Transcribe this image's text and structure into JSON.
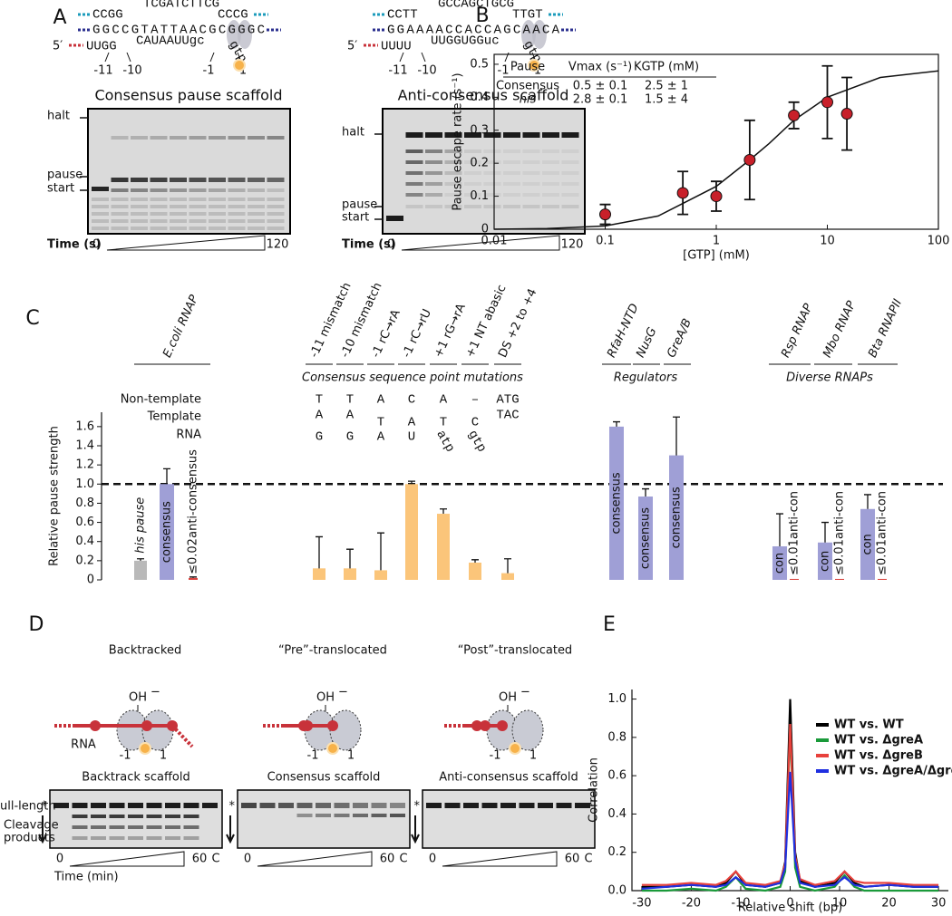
{
  "figure": {
    "panel_labels": {
      "a": "A",
      "b": "B",
      "c": "C",
      "d": "D",
      "e": "E"
    },
    "a_left": {
      "nontemplate": [
        "CCGG",
        "TCGATCTTCG",
        "CCCG"
      ],
      "template": "GGCCGTATTAACGCGGGC",
      "rna": [
        "5′",
        "UUGG",
        "CAUAAUUgc",
        "gtp"
      ],
      "positions": [
        "-11",
        "-10",
        "-1",
        "1"
      ],
      "title": "Consensus pause scaffold",
      "gel_labels": [
        "halt",
        "pause",
        "start"
      ],
      "time": [
        "Time (s)",
        "0",
        "120"
      ]
    },
    "a_right": {
      "nontemplate": [
        "CCTT",
        "GCCAGCTGCG",
        "TTGT"
      ],
      "template": "GGAAAACCACCAGCAACA",
      "rna": [
        "5′",
        "UUUU",
        "UUGGUGGuc",
        "gtp"
      ],
      "positions": [
        "-11",
        "-10",
        "-1",
        "1"
      ],
      "title": "Anti-consensus scaffold",
      "gel_labels": [
        "halt",
        "pause",
        "start"
      ],
      "time": [
        "Time (s)",
        "0",
        "120"
      ]
    },
    "d": {
      "states": [
        "Backtracked",
        "“Pre”-translocated",
        "“Post”-translocated"
      ],
      "oh": "OH",
      "oh_sup": "−",
      "rna": "RNA",
      "positions": [
        "-1",
        "1"
      ],
      "gels": [
        "Backtrack scaffold",
        "Consensus scaffold",
        "Anti-consensus scaffold"
      ],
      "gel_labels": [
        "ull-length",
        "*",
        "Cleavage",
        "products"
      ],
      "time": [
        "0",
        "60",
        "C",
        "Time (min)"
      ]
    }
  },
  "chart_data": [
    {
      "type": "scatter",
      "x_label": "[GTP] (mM)",
      "y_label": "Pause escape rate (s⁻¹)",
      "x": [
        0.1,
        0.5,
        1,
        2,
        5,
        10,
        15
      ],
      "values": [
        0.045,
        0.11,
        0.1,
        0.21,
        0.345,
        0.385,
        0.35
      ],
      "errors": [
        0.03,
        0.065,
        0.045,
        0.12,
        0.04,
        0.11,
        0.11
      ],
      "color": "#c8202a",
      "xlog": true,
      "xlim": [
        0.01,
        100
      ],
      "xticks": [
        0.01,
        0.1,
        1,
        10,
        100
      ],
      "ylim": [
        0,
        0.53
      ],
      "yticks": [
        0,
        0.1,
        0.2,
        0.3,
        0.4,
        0.5
      ],
      "fit": {
        "x": [
          0.01,
          0.03,
          0.1,
          0.3,
          1,
          2,
          3,
          5,
          10,
          30,
          100
        ],
        "values": [
          0,
          0.002,
          0.01,
          0.04,
          0.13,
          0.21,
          0.26,
          0.33,
          0.4,
          0.46,
          0.48
        ]
      },
      "inset_table": {
        "header": [
          "Pause",
          "Vmax (s⁻¹)",
          "KGTP (mM)"
        ],
        "rows": [
          [
            "Consensus",
            "0.5 ± 0.1",
            "2.5 ± 1"
          ],
          [
            "his",
            "2.8 ± 0.1",
            "1.5 ± 4"
          ]
        ]
      }
    },
    {
      "type": "bar",
      "y_label": "Relative pause strength",
      "categories": [
        "his pause",
        "consensus",
        "anti-consensus",
        "-11 mismatch",
        "-10 mismatch",
        "-1 rC→rA",
        "-1 rC→rU",
        "+1 rG→rA",
        "+1 NT abasic",
        "DS +2 to +4",
        "consensus",
        "consensus",
        "consensus",
        "con",
        "anti-con",
        "con",
        "anti-con",
        "con",
        "anti-con"
      ],
      "values": [
        0.2,
        1.0,
        0.02,
        0.12,
        0.12,
        0.1,
        1.0,
        0.69,
        0.18,
        0.07,
        1.6,
        0.87,
        1.3,
        0.35,
        0.01,
        0.39,
        0.01,
        0.74,
        0.01
      ],
      "errors": [
        0.02,
        0.16,
        0.01,
        0.33,
        0.2,
        0.39,
        0.03,
        0.05,
        0.03,
        0.15,
        0.05,
        0.08,
        0.4,
        0.34,
        null,
        0.21,
        null,
        0.15,
        null
      ],
      "value_labels": [
        null,
        null,
        "≤0.02",
        null,
        null,
        null,
        null,
        null,
        null,
        null,
        null,
        null,
        null,
        null,
        "≤0.01",
        null,
        "≤0.01",
        null,
        "≤0.01"
      ],
      "colors": [
        "#b9b9b9",
        "#9f9fd6",
        "#d9443f",
        "#fbc57a",
        "#fbc57a",
        "#fbc57a",
        "#fbc57a",
        "#fbc57a",
        "#fbc57a",
        "#fbc57a",
        "#9f9fd6",
        "#9f9fd6",
        "#9f9fd6",
        "#9f9fd6",
        "#d9443f",
        "#9f9fd6",
        "#d9443f",
        "#9f9fd6",
        "#d9443f"
      ],
      "ylim": [
        0,
        1.75
      ],
      "yticks": [
        0,
        0.2,
        0.4,
        0.6,
        0.8,
        {
          "value": 1,
          "label": "1.0"
        },
        1.2,
        1.4,
        1.6
      ],
      "reference_line": 1,
      "group_headers": [
        "E.coli RNAP",
        "RfaH-NTD",
        "NusG",
        "GreA/B",
        "Rsp RNAP",
        "Mbo RNAP",
        "Bta RNAPII"
      ],
      "group_titles": [
        "Consensus sequence point mutations",
        "Regulators",
        "Diverse RNAPs"
      ],
      "sequence_table": {
        "row_labels": [
          "Non-template",
          "Template",
          "RNA"
        ],
        "nontemplate": [
          "T",
          "T",
          "A",
          "C",
          "A",
          "–",
          "ATG"
        ],
        "template": [
          "A",
          "A",
          "T",
          "A",
          "T",
          "C",
          "TAC"
        ],
        "rna": [
          "G",
          "G",
          "A",
          "U",
          "atp",
          "gtp"
        ]
      }
    },
    {
      "type": "line",
      "x_label": "Relative shift (bp)",
      "y_label": "Correlation",
      "x": [
        -30,
        -25,
        -20,
        -15,
        -13,
        -11,
        -9,
        -5,
        -2,
        -1,
        0,
        1,
        2,
        5,
        9,
        11,
        13,
        15,
        20,
        25,
        30
      ],
      "series": [
        {
          "name": "WT vs. WT",
          "color": "#000000",
          "values": [
            0.02,
            0.02,
            0.03,
            0.02,
            0.04,
            0.1,
            0.03,
            0.02,
            0.04,
            0.15,
            1.0,
            0.2,
            0.05,
            0.02,
            0.04,
            0.1,
            0.04,
            0.02,
            0.03,
            0.02,
            0.02
          ]
        },
        {
          "name": "WT vs. ΔgreA",
          "color": "#1a9a3a",
          "values": [
            0,
            0,
            0.01,
            0,
            0.02,
            0.07,
            0.01,
            0,
            0.02,
            0.1,
            0.85,
            0.12,
            0.02,
            0,
            0.02,
            0.08,
            0.02,
            0,
            0,
            0,
            0
          ]
        },
        {
          "name": "WT vs. ΔgreB",
          "color": "#e8413c",
          "values": [
            0.03,
            0.03,
            0.04,
            0.03,
            0.05,
            0.1,
            0.04,
            0.03,
            0.05,
            0.14,
            0.87,
            0.18,
            0.06,
            0.03,
            0.05,
            0.1,
            0.05,
            0.04,
            0.04,
            0.03,
            0.03
          ]
        },
        {
          "name": "WT vs. ΔgreA/ΔgreB",
          "color": "#1f2fe0",
          "values": [
            0.01,
            0.02,
            0.03,
            0.02,
            0.03,
            0.07,
            0.03,
            0.02,
            0.04,
            0.12,
            0.62,
            0.16,
            0.04,
            0.02,
            0.03,
            0.07,
            0.03,
            0.02,
            0.03,
            0.02,
            0.02
          ]
        }
      ],
      "xlim": [
        -32,
        32
      ],
      "xticks": [
        -30,
        -20,
        -10,
        0,
        10,
        20,
        30
      ],
      "ylim": [
        0,
        1.05
      ],
      "yticks": [
        {
          "value": 0,
          "label": "0.0"
        },
        0.2,
        0.4,
        0.6,
        0.8,
        {
          "value": 1,
          "label": "1.0"
        }
      ],
      "legend": "upper right"
    }
  ]
}
